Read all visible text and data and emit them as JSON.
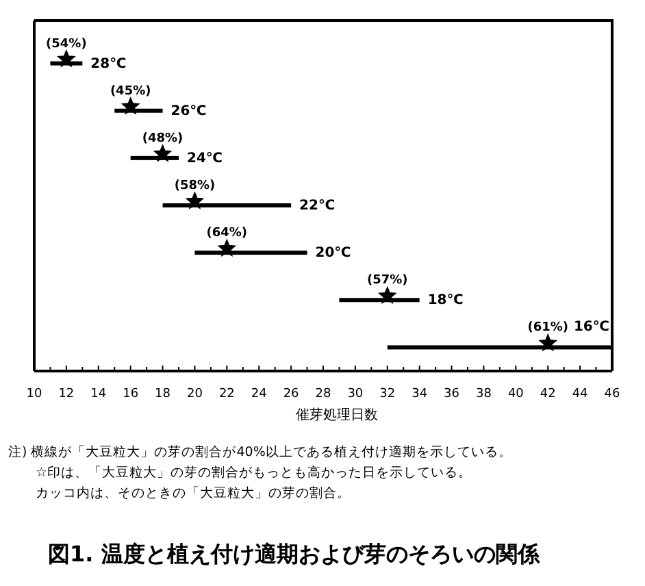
{
  "chart_data": {
    "type": "bar",
    "orientation": "horizontal",
    "title": "図1. 温度と植え付け適期および芽のそろいの関係",
    "xlabel": "催芽処理日数",
    "categories": [
      null,
      null,
      null,
      null,
      null,
      null,
      null
    ],
    "series": [
      {
        "color": "#000000",
        "base": [
          11,
          15,
          16,
          18,
          20,
          29,
          32
        ],
        "values": [
          2,
          3,
          3,
          8,
          7,
          5,
          14
        ]
      },
      {
        "type": "scatter",
        "marker": "star",
        "color": "#000000",
        "values": [
          12,
          16,
          18,
          20,
          22,
          32,
          42
        ]
      }
    ],
    "xlim": [
      10,
      46
    ],
    "xticks": [
      10,
      12,
      14,
      16,
      18,
      20,
      22,
      24,
      26,
      28,
      30,
      32,
      34,
      36,
      38,
      40,
      42,
      44,
      46
    ],
    "tick_labels": "x",
    "annotations": [
      "(54%)",
      "(45%)",
      "(48%)",
      "(58%)",
      "(64%)",
      "(57%)",
      "(61%)",
      "28℃",
      "26℃",
      "24℃",
      "22℃",
      "20℃",
      "18℃",
      "16℃",
      "注) 横線が「大豆粒大」の芽の割合が40%以上である植え付け適期を示している。",
      "☆印は、「大豆粒大」の芽の割合がもっとも高かった日を示している。",
      "カッコ内は、そのときの「大豆粒大」の芽の割合。"
    ]
  }
}
